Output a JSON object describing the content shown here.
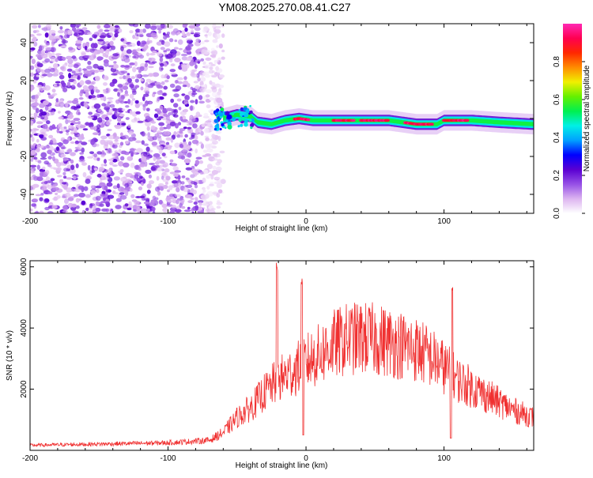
{
  "title": "YM08.2025.270.08.41.C27",
  "colors": {
    "snr_line": "#f03030",
    "colormap": [
      "#ffffff",
      "#dcb4f0",
      "#9650e6",
      "#5a00d2",
      "#0000ff",
      "#00a0ff",
      "#00f0e6",
      "#00f050",
      "#64f000",
      "#f0f000",
      "#ff8c00",
      "#ff2800",
      "#ff0050",
      "#ff28b4"
    ]
  },
  "chart_data": [
    {
      "type": "heatmap",
      "name": "spectrogram",
      "xlabel": "Height of straight line (km)",
      "ylabel": "Frequency (Hz)",
      "xlim": [
        -200,
        165
      ],
      "ylim": [
        -50,
        50
      ],
      "xticks": [
        -200,
        -100,
        0,
        100
      ],
      "xtick_labels": [
        "-200",
        "-100",
        "0",
        "100"
      ],
      "yticks": [
        -40,
        -20,
        0,
        20,
        40
      ],
      "ytick_labels": [
        "-40",
        "-20",
        "0",
        "20",
        "40"
      ],
      "noise_region": {
        "x_from": -200,
        "x_to": -60,
        "freq_from": -50,
        "freq_to": 50
      },
      "signal_track": {
        "freq": [
          [
            -60,
            0
          ],
          [
            -50,
            2
          ],
          [
            -40,
            1
          ],
          [
            -35,
            -2
          ],
          [
            -25,
            -3
          ],
          [
            -15,
            -1
          ],
          [
            -5,
            0
          ],
          [
            5,
            -1
          ],
          [
            20,
            -1
          ],
          [
            40,
            -1
          ],
          [
            60,
            -1
          ],
          [
            70,
            -2
          ],
          [
            80,
            -3
          ],
          [
            95,
            -3
          ],
          [
            100,
            -1
          ],
          [
            120,
            -1
          ],
          [
            140,
            -2
          ],
          [
            165,
            -3
          ]
        ],
        "width_hz": 6
      },
      "colorbar": {
        "label": "Normalized spectral amplitude",
        "range": [
          0,
          1
        ],
        "ticks": [
          0.0,
          0.2,
          0.4,
          0.6,
          0.8
        ],
        "tick_labels": [
          "0.0",
          "0.2",
          "0.4",
          "0.6",
          "0.8"
        ]
      }
    },
    {
      "type": "line",
      "name": "snr",
      "xlabel": "Height of straight line (km)",
      "ylabel": "SNR (10 * v/v)",
      "xlim": [
        -200,
        165
      ],
      "ylim": [
        0,
        6200
      ],
      "xticks": [
        -200,
        -100,
        0,
        100
      ],
      "xtick_labels": [
        "-200",
        "-100",
        "0",
        "100"
      ],
      "yticks": [
        2000,
        4000,
        6000
      ],
      "ytick_labels": [
        "2000",
        "4000",
        "6000"
      ],
      "envelope": [
        [
          -200,
          200
        ],
        [
          -150,
          250
        ],
        [
          -100,
          300
        ],
        [
          -70,
          400
        ],
        [
          -60,
          700
        ],
        [
          -50,
          1300
        ],
        [
          -40,
          1700
        ],
        [
          -30,
          2300
        ],
        [
          -20,
          2800
        ],
        [
          -10,
          3100
        ],
        [
          0,
          3500
        ],
        [
          10,
          3800
        ],
        [
          20,
          4200
        ],
        [
          30,
          4400
        ],
        [
          40,
          4450
        ],
        [
          50,
          4400
        ],
        [
          60,
          4300
        ],
        [
          70,
          4150
        ],
        [
          80,
          4000
        ],
        [
          90,
          3700
        ],
        [
          100,
          3300
        ],
        [
          110,
          2800
        ],
        [
          120,
          2500
        ],
        [
          130,
          2200
        ],
        [
          140,
          1900
        ],
        [
          150,
          1600
        ],
        [
          165,
          1300
        ]
      ],
      "spikes": [
        [
          -21,
          6150
        ],
        [
          -3,
          5700
        ],
        [
          106,
          5500
        ]
      ],
      "dips": [
        [
          -2,
          500
        ],
        [
          105,
          400
        ]
      ]
    }
  ]
}
